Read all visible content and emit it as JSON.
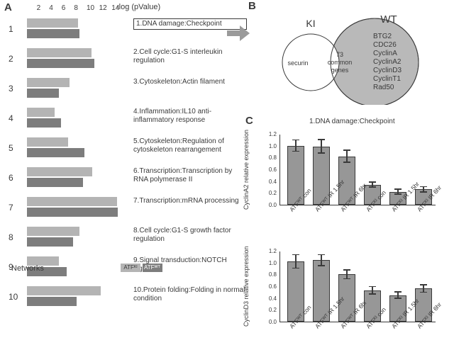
{
  "panelA": {
    "label": "A",
    "axis_label": "-log (pValue)",
    "ticks": [
      2,
      4,
      6,
      8,
      10,
      12,
      14
    ],
    "pxPerUnit": 8.8,
    "networks_label": "Networks",
    "series_colors": {
      "ki": "#b4b4b4",
      "wt": "#7d7d7d"
    },
    "legend": {
      "ki": "ATFᴷᴵ",
      "wt": "ATFᵂᵀ"
    },
    "rows": [
      {
        "n": "1",
        "ki": 8.2,
        "wt": 8.4,
        "label": "1.DNA damage:Checkpoint"
      },
      {
        "n": "2",
        "ki": 10.3,
        "wt": 10.8,
        "label": "2.Cell cycle:G1-S interleukin regulation"
      },
      {
        "n": "3",
        "ki": 6.8,
        "wt": 5.1,
        "label": "3.Cytoskeleton:Actin filament"
      },
      {
        "n": "4",
        "ki": 4.4,
        "wt": 5.5,
        "label": "4.Inflammation:IL10 anti-inflammatory response"
      },
      {
        "n": "5",
        "ki": 6.6,
        "wt": 9.2,
        "label": "5.Cytoskeleton:Regulation of cytoskeleton rearrangement"
      },
      {
        "n": "6",
        "ki": 10.4,
        "wt": 9.0,
        "label": "6.Transcription:Transcription by RNA polymerase II"
      },
      {
        "n": "7",
        "ki": 14.4,
        "wt": 14.6,
        "label": "7.Transcription:mRNA processing"
      },
      {
        "n": "8",
        "ki": 8.4,
        "wt": 7.4,
        "label": "8.Cell cycle:G1-S growth factor regulation"
      },
      {
        "n": "9",
        "ki": 5.1,
        "wt": 6.4,
        "label": "9.Signal transduction:NOTCH signaling"
      },
      {
        "n": "10",
        "ki": 11.8,
        "wt": 8.0,
        "label": "10.Protein folding:Folding in normal condition"
      }
    ]
  },
  "panelB": {
    "label": "B",
    "ki_label": "KI",
    "wt_label": "WT",
    "ki_only": "securin",
    "overlap": "73\ncommon\ngenes",
    "wt_only": [
      "BTG2",
      "CDC26",
      "CyclinA",
      "CyclinA2",
      "CyclinD3",
      "CyclinT1",
      "Rad50"
    ],
    "stroke": "#3a3a3a",
    "wt_fill": "#b9b9b9",
    "ki_fill": "#ffffff"
  },
  "panelC": {
    "label": "C",
    "title": "1.DNA damage:Checkpoint",
    "bar_fill": "#979797",
    "bar_stroke": "#3a3a3a",
    "plots": [
      {
        "ylabel": "CyclinA2 relative expression",
        "ylim": [
          0,
          1.2
        ],
        "ytick_step": 0.2,
        "categories": [
          "ATFᵂᵀ con",
          "ATFᵂᵀ IR 1.5hr",
          "ATFᵂᵀ IR 6hr",
          "ATFᴷᴵ con",
          "ATFᴷᴵ IR 1.5hr",
          "ATFᴷᴵ IR 6hr"
        ],
        "values": [
          1.0,
          0.99,
          0.82,
          0.34,
          0.22,
          0.26
        ],
        "errors": [
          0.1,
          0.12,
          0.11,
          0.05,
          0.05,
          0.05
        ]
      },
      {
        "ylabel": "CyclinD3 relative expression",
        "ylim": [
          0,
          1.2
        ],
        "ytick_step": 0.2,
        "categories": [
          "ATFᵂᵀ con",
          "ATFᵂᵀ IR 1.5hr",
          "ATFᵂᵀ IR 6hr",
          "ATFᴷᴵ con",
          "ATFᴷᴵ IR 1.5hr",
          "ATFᴷᴵ IR 6hr"
        ],
        "values": [
          1.02,
          1.04,
          0.8,
          0.53,
          0.45,
          0.56
        ],
        "errors": [
          0.12,
          0.1,
          0.08,
          0.07,
          0.06,
          0.07
        ]
      }
    ]
  }
}
